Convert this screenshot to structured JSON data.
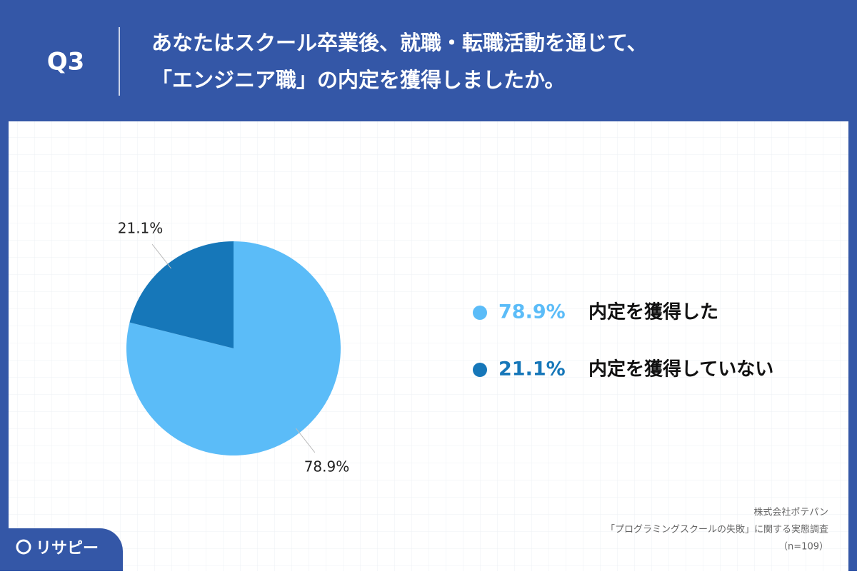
{
  "question_number": "Q3",
  "chart_data": {
    "type": "pie",
    "title": [
      "あなたはスクール卒業後、就職・転職活動を通じて、",
      "「エンジニア職」の内定を獲得しましたか。"
    ],
    "categories": [
      "内定を獲得した",
      "内定を獲得していない"
    ],
    "values": [
      78.9,
      21.1
    ],
    "value_labels": [
      "78.9%",
      "21.1%"
    ],
    "colors": [
      "#5bbcf8",
      "#1677b9"
    ],
    "legend": "right"
  },
  "source": [
    "株式会社ポテパン",
    "「プログラミングスクールの失敗」に関する実態調査",
    "（n=109）"
  ],
  "logo": "リサピー"
}
